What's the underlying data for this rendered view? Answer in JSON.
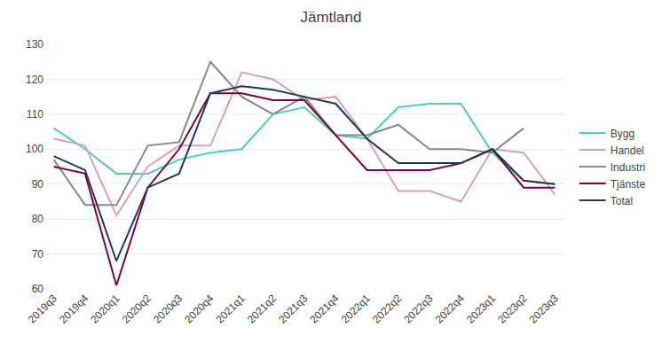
{
  "chart_data": {
    "type": "line",
    "title": "Jämtland",
    "categories": [
      "2019q3",
      "2019q4",
      "2020q1",
      "2020q2",
      "2020q3",
      "2020q4",
      "2021q1",
      "2021q2",
      "2021q3",
      "2021q4",
      "2022q1",
      "2022q2",
      "2022q3",
      "2022q4",
      "2023q1",
      "2023q2",
      "2023q3"
    ],
    "series": [
      {
        "name": "Bygg",
        "color": "#4ecdc4",
        "values": [
          106,
          100,
          93,
          93,
          97,
          99,
          100,
          110,
          112,
          104,
          103,
          112,
          113,
          113,
          99,
          91,
          90
        ]
      },
      {
        "name": "Handel",
        "color": "#d9a0b8",
        "values": [
          103,
          101,
          81,
          95,
          101,
          101,
          122,
          120,
          114,
          115,
          103,
          88,
          88,
          85,
          100,
          99,
          87
        ]
      },
      {
        "name": "Industri",
        "color": "#888888",
        "values": [
          97,
          84,
          84,
          101,
          102,
          125,
          115,
          110,
          115,
          104,
          104,
          107,
          100,
          100,
          99,
          106,
          null
        ]
      },
      {
        "name": "Tjänste",
        "color": "#800040",
        "values": [
          95,
          93,
          61,
          89,
          100,
          116,
          116,
          114,
          114,
          104,
          94,
          94,
          94,
          96,
          100,
          89,
          89
        ]
      },
      {
        "name": "Total",
        "color": "#1f3864",
        "values": [
          98,
          94,
          68,
          89,
          93,
          116,
          118,
          117,
          115,
          113,
          103,
          96,
          96,
          96,
          100,
          91,
          90
        ]
      }
    ],
    "ylim": [
      60,
      130
    ],
    "yticks": [
      60,
      70,
      80,
      90,
      100,
      110,
      120,
      130
    ],
    "grid": true,
    "legend": "right"
  }
}
